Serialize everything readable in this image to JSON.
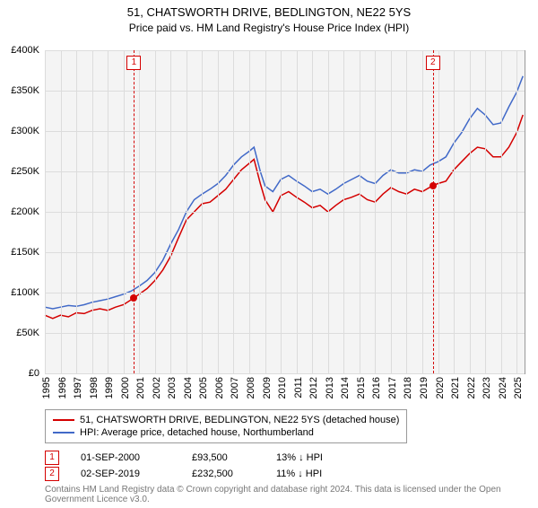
{
  "title": "51, CHATSWORTH DRIVE, BEDLINGTON, NE22 5YS",
  "subtitle": "Price paid vs. HM Land Registry's House Price Index (HPI)",
  "chart": {
    "type": "line",
    "background_color": "#f4f4f4",
    "grid_color": "#dcdcdc",
    "axis_color": "#999999",
    "x_range": [
      1995,
      2025.5
    ],
    "y_range": [
      0,
      400000
    ],
    "ytick_step": 50000,
    "yticks": [
      "£0",
      "£50K",
      "£100K",
      "£150K",
      "£200K",
      "£250K",
      "£300K",
      "£350K",
      "£400K"
    ],
    "xticks": [
      1995,
      1996,
      1997,
      1998,
      1999,
      2000,
      2001,
      2002,
      2003,
      2004,
      2005,
      2006,
      2007,
      2008,
      2009,
      2010,
      2011,
      2012,
      2013,
      2014,
      2015,
      2016,
      2017,
      2018,
      2019,
      2020,
      2021,
      2022,
      2023,
      2024,
      2025
    ],
    "label_fontsize": 11,
    "series": [
      {
        "name": "51, CHATSWORTH DRIVE, BEDLINGTON, NE22 5YS (detached house)",
        "color": "#d40000",
        "line_width": 1.5,
        "data": [
          [
            1995,
            72000
          ],
          [
            1995.5,
            68000
          ],
          [
            1996,
            72000
          ],
          [
            1996.5,
            70000
          ],
          [
            1997,
            75000
          ],
          [
            1997.5,
            74000
          ],
          [
            1998,
            78000
          ],
          [
            1998.5,
            80000
          ],
          [
            1999,
            78000
          ],
          [
            1999.5,
            82000
          ],
          [
            2000,
            85000
          ],
          [
            2000.67,
            93500
          ],
          [
            2001,
            98000
          ],
          [
            2001.5,
            105000
          ],
          [
            2002,
            115000
          ],
          [
            2002.5,
            128000
          ],
          [
            2003,
            145000
          ],
          [
            2003.5,
            168000
          ],
          [
            2004,
            190000
          ],
          [
            2004.5,
            200000
          ],
          [
            2005,
            210000
          ],
          [
            2005.5,
            212000
          ],
          [
            2006,
            220000
          ],
          [
            2006.5,
            228000
          ],
          [
            2007,
            240000
          ],
          [
            2007.5,
            252000
          ],
          [
            2008,
            260000
          ],
          [
            2008.3,
            265000
          ],
          [
            2008.7,
            235000
          ],
          [
            2009,
            215000
          ],
          [
            2009.5,
            200000
          ],
          [
            2010,
            220000
          ],
          [
            2010.5,
            225000
          ],
          [
            2011,
            218000
          ],
          [
            2011.5,
            212000
          ],
          [
            2012,
            205000
          ],
          [
            2012.5,
            208000
          ],
          [
            2013,
            200000
          ],
          [
            2013.5,
            208000
          ],
          [
            2014,
            215000
          ],
          [
            2014.5,
            218000
          ],
          [
            2015,
            222000
          ],
          [
            2015.5,
            215000
          ],
          [
            2016,
            212000
          ],
          [
            2016.5,
            222000
          ],
          [
            2017,
            230000
          ],
          [
            2017.5,
            225000
          ],
          [
            2018,
            222000
          ],
          [
            2018.5,
            228000
          ],
          [
            2019,
            225000
          ],
          [
            2019.67,
            232500
          ],
          [
            2020,
            235000
          ],
          [
            2020.5,
            238000
          ],
          [
            2021,
            252000
          ],
          [
            2021.5,
            262000
          ],
          [
            2022,
            272000
          ],
          [
            2022.5,
            280000
          ],
          [
            2023,
            278000
          ],
          [
            2023.5,
            268000
          ],
          [
            2024,
            268000
          ],
          [
            2024.5,
            280000
          ],
          [
            2025,
            298000
          ],
          [
            2025.4,
            320000
          ]
        ]
      },
      {
        "name": "HPI: Average price, detached house, Northumberland",
        "color": "#4169c8",
        "line_width": 1.5,
        "data": [
          [
            1995,
            82000
          ],
          [
            1995.5,
            80000
          ],
          [
            1996,
            82000
          ],
          [
            1996.5,
            84000
          ],
          [
            1997,
            83000
          ],
          [
            1997.5,
            85000
          ],
          [
            1998,
            88000
          ],
          [
            1998.5,
            90000
          ],
          [
            1999,
            92000
          ],
          [
            1999.5,
            95000
          ],
          [
            2000,
            98000
          ],
          [
            2000.5,
            102000
          ],
          [
            2001,
            108000
          ],
          [
            2001.5,
            115000
          ],
          [
            2002,
            125000
          ],
          [
            2002.5,
            140000
          ],
          [
            2003,
            160000
          ],
          [
            2003.5,
            178000
          ],
          [
            2004,
            200000
          ],
          [
            2004.5,
            215000
          ],
          [
            2005,
            222000
          ],
          [
            2005.5,
            228000
          ],
          [
            2006,
            235000
          ],
          [
            2006.5,
            245000
          ],
          [
            2007,
            258000
          ],
          [
            2007.5,
            268000
          ],
          [
            2008,
            275000
          ],
          [
            2008.3,
            280000
          ],
          [
            2008.7,
            250000
          ],
          [
            2009,
            232000
          ],
          [
            2009.5,
            225000
          ],
          [
            2010,
            240000
          ],
          [
            2010.5,
            245000
          ],
          [
            2011,
            238000
          ],
          [
            2011.5,
            232000
          ],
          [
            2012,
            225000
          ],
          [
            2012.5,
            228000
          ],
          [
            2013,
            222000
          ],
          [
            2013.5,
            228000
          ],
          [
            2014,
            235000
          ],
          [
            2014.5,
            240000
          ],
          [
            2015,
            245000
          ],
          [
            2015.5,
            238000
          ],
          [
            2016,
            235000
          ],
          [
            2016.5,
            245000
          ],
          [
            2017,
            252000
          ],
          [
            2017.5,
            248000
          ],
          [
            2018,
            248000
          ],
          [
            2018.5,
            252000
          ],
          [
            2019,
            250000
          ],
          [
            2019.5,
            258000
          ],
          [
            2020,
            262000
          ],
          [
            2020.5,
            268000
          ],
          [
            2021,
            285000
          ],
          [
            2021.5,
            298000
          ],
          [
            2022,
            315000
          ],
          [
            2022.5,
            328000
          ],
          [
            2023,
            320000
          ],
          [
            2023.5,
            308000
          ],
          [
            2024,
            310000
          ],
          [
            2024.5,
            330000
          ],
          [
            2025,
            348000
          ],
          [
            2025.4,
            368000
          ]
        ]
      }
    ],
    "markers": [
      {
        "n": "1",
        "x": 2000.67,
        "y": 93500,
        "color": "#d40000"
      },
      {
        "n": "2",
        "x": 2019.67,
        "y": 232500,
        "color": "#d40000"
      }
    ]
  },
  "sales": [
    {
      "n": "1",
      "date": "01-SEP-2000",
      "price": "£93,500",
      "diff": "13% ↓ HPI",
      "color": "#d40000"
    },
    {
      "n": "2",
      "date": "02-SEP-2019",
      "price": "£232,500",
      "diff": "11% ↓ HPI",
      "color": "#d40000"
    }
  ],
  "footer": "Contains HM Land Registry data © Crown copyright and database right 2024. This data is licensed under the Open Government Licence v3.0."
}
